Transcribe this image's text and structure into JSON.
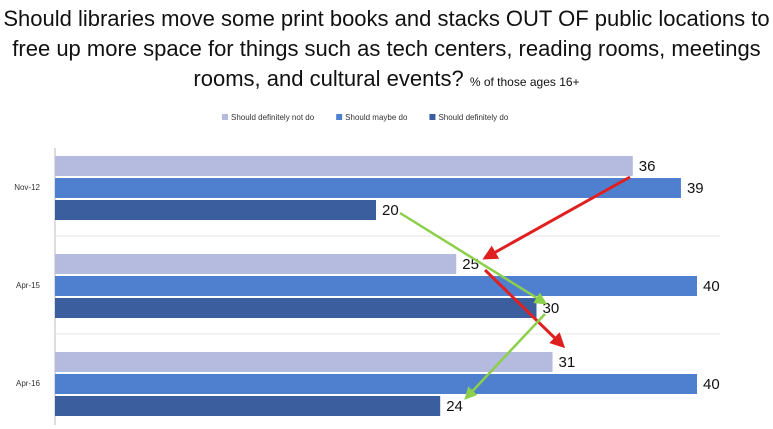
{
  "chart_data": {
    "type": "bar",
    "orientation": "horizontal",
    "title": "Should libraries move some print books and stacks OUT OF public locations to free up more space for things such as tech centers, reading rooms, meetings rooms, and cultural events?",
    "subtitle": "% of those ages 16+",
    "categories": [
      "Nov-12",
      "Apr-15",
      "Apr-16"
    ],
    "series": [
      {
        "name": "Should definitely not do",
        "color": "#b5badf",
        "values": [
          36,
          25,
          31
        ]
      },
      {
        "name": "Should maybe do",
        "color": "#4f80cf",
        "values": [
          39,
          40,
          40
        ]
      },
      {
        "name": "Should definitely do",
        "color": "#3b5f9e",
        "values": [
          20,
          30,
          24
        ]
      }
    ],
    "legend": "top"
  }
}
